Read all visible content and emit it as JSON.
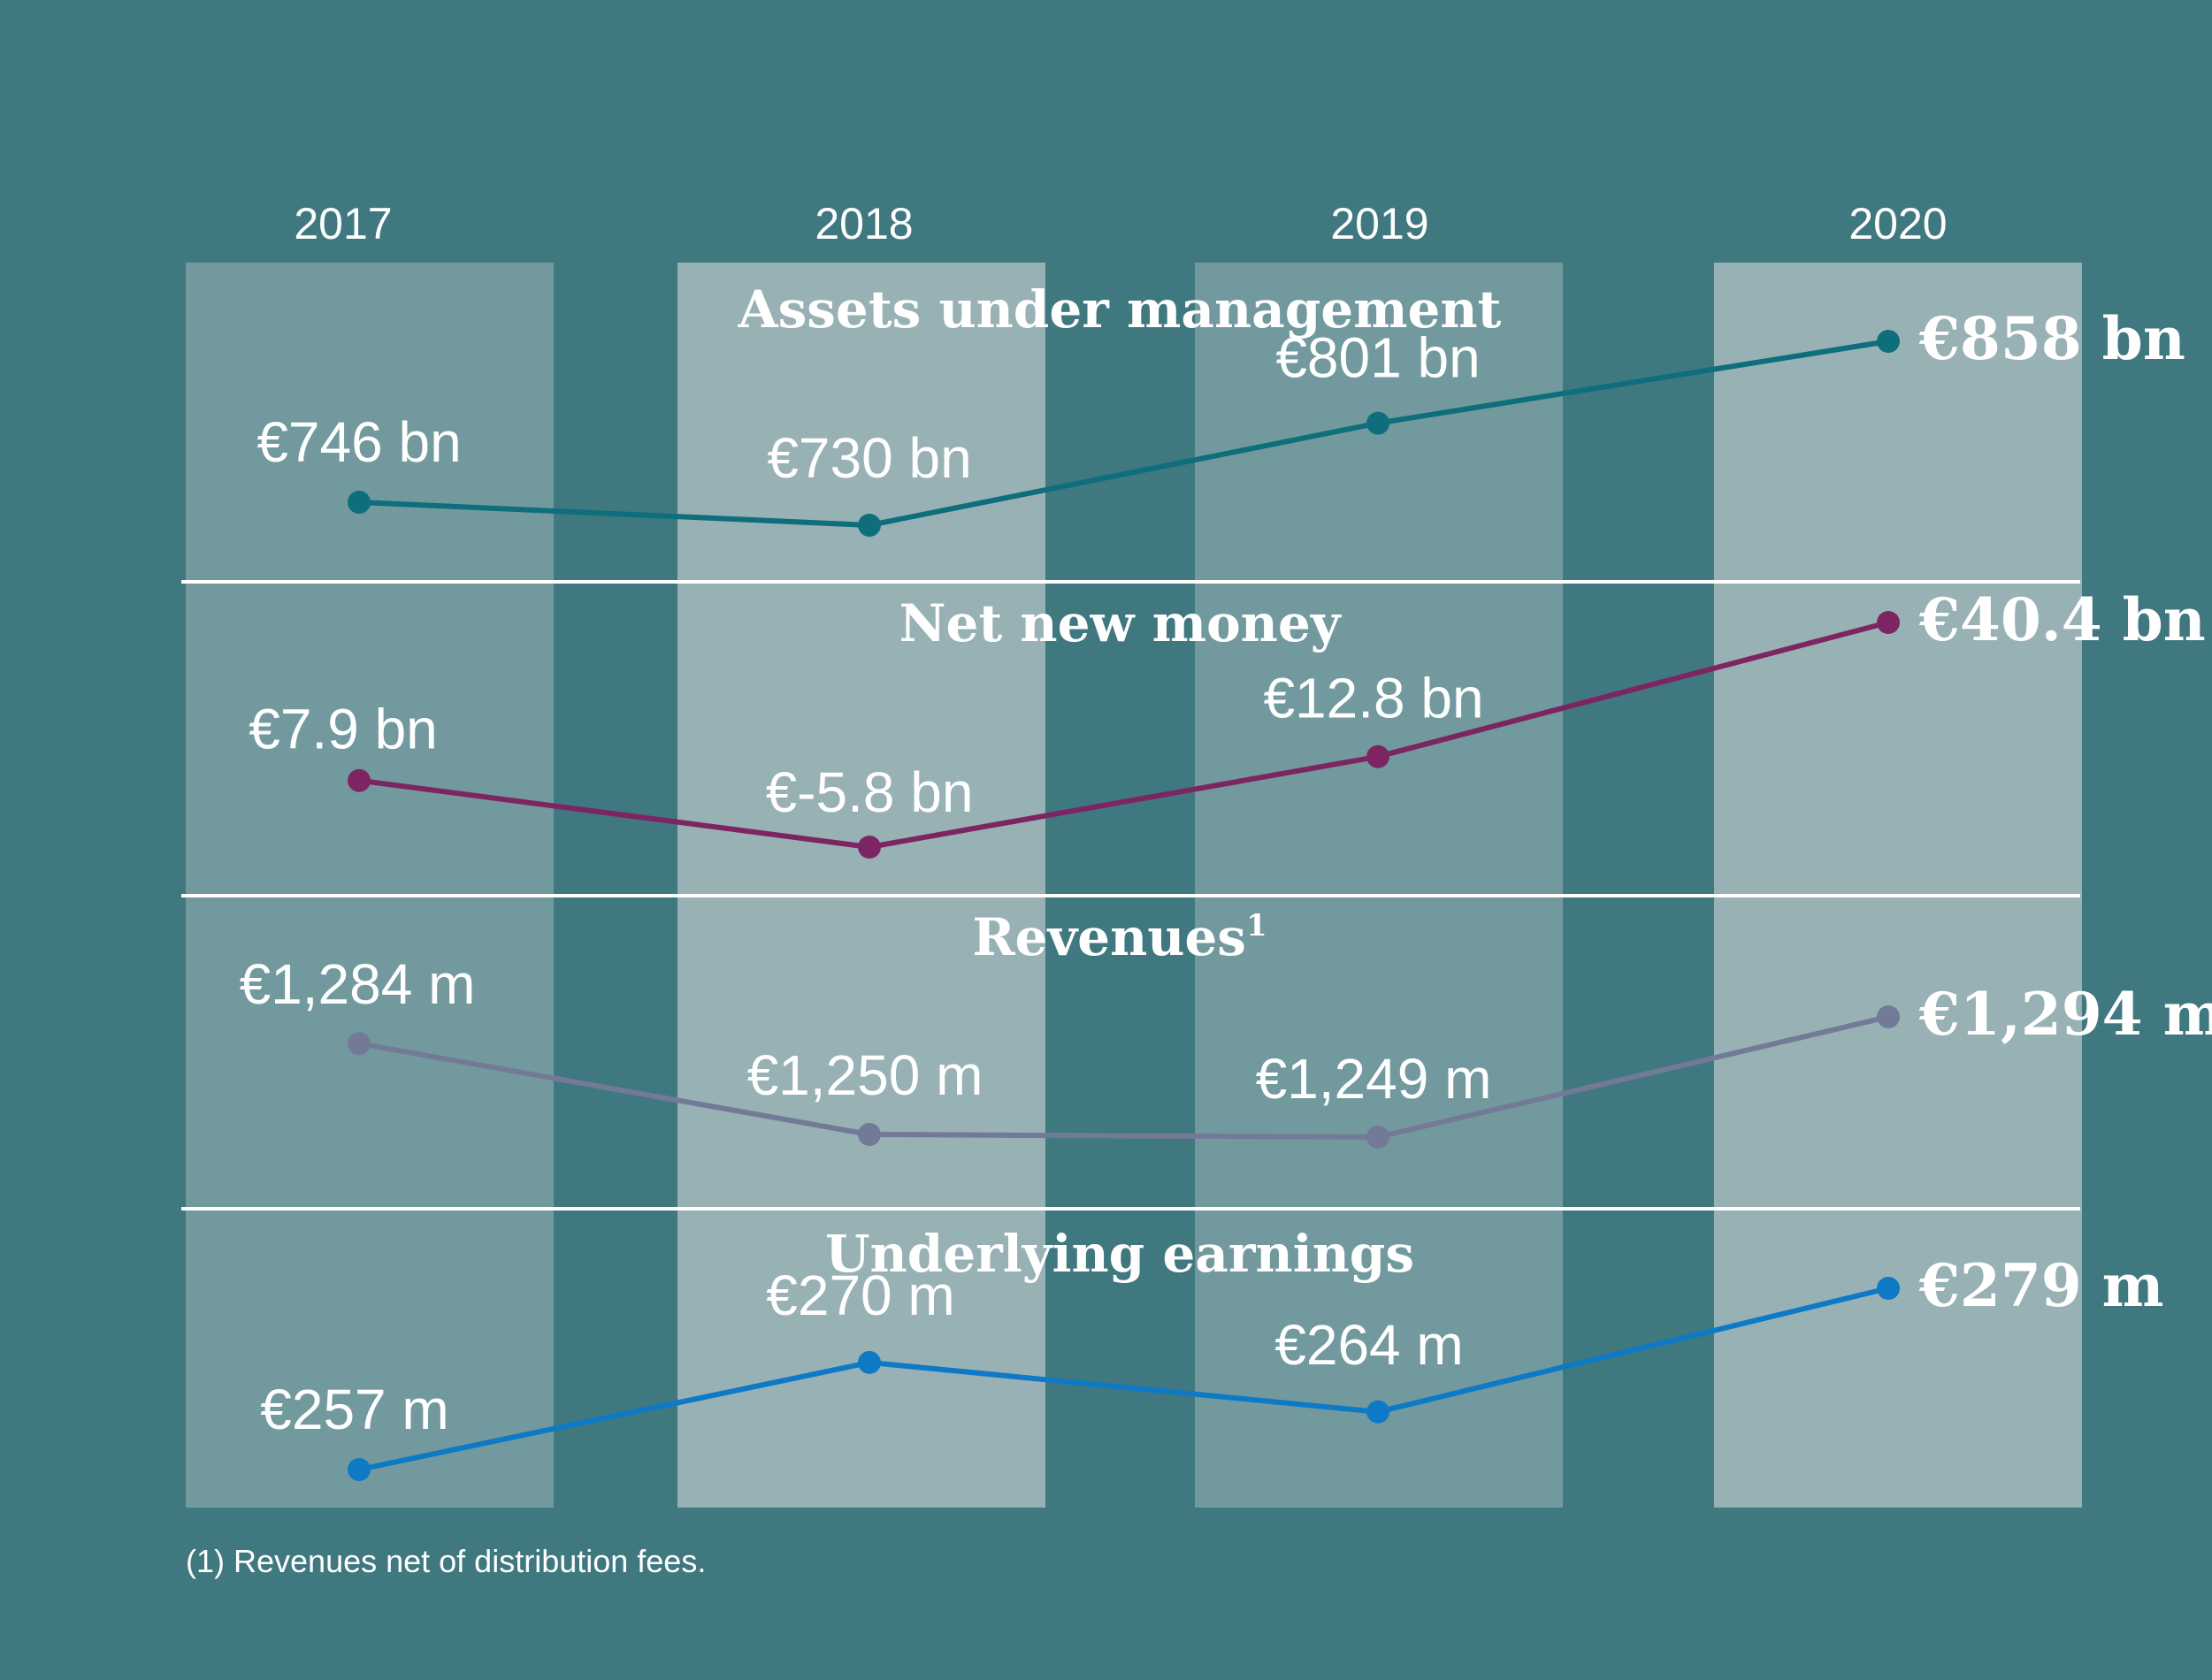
{
  "chart_data": {
    "type": "line",
    "categories": [
      "2017",
      "2018",
      "2019",
      "2020"
    ],
    "panels": [
      {
        "title": "Assets under management",
        "title_superscript": "",
        "unit": "€ bn",
        "color": "#0E6E7C",
        "values": [
          746,
          730,
          801,
          858
        ],
        "labels": [
          "€746 bn",
          "€730 bn",
          "€801 bn",
          "€858 bn"
        ]
      },
      {
        "title": "Net new money",
        "title_superscript": "",
        "unit": "€ bn",
        "color": "#7D2563",
        "values": [
          7.9,
          -5.8,
          12.8,
          40.4
        ],
        "labels": [
          "€7.9 bn",
          "€-5.8 bn",
          "€12.8 bn",
          "€40.4 bn"
        ]
      },
      {
        "title": "Revenues",
        "title_superscript": "1",
        "unit": "€ m",
        "color": "#737A97",
        "values": [
          1284,
          1250,
          1249,
          1294
        ],
        "labels": [
          "€1,284 m",
          "€1,250 m",
          "€1,249 m",
          "€1,294 m"
        ]
      },
      {
        "title": "Underlying earnings",
        "title_superscript": "",
        "unit": "€ m",
        "color": "#0E79C4",
        "values": [
          257,
          270,
          264,
          279
        ],
        "labels": [
          "€257 m",
          "€270 m",
          "€264 m",
          "€279 m"
        ]
      }
    ],
    "footnote": "(1) Revenues net of distribution fees."
  },
  "colors": {
    "background": "#407880",
    "column_odd": "#729A9E",
    "column_even": "#98B1B5",
    "divider": "#FFFFFF",
    "text": "#FFFFFF"
  }
}
